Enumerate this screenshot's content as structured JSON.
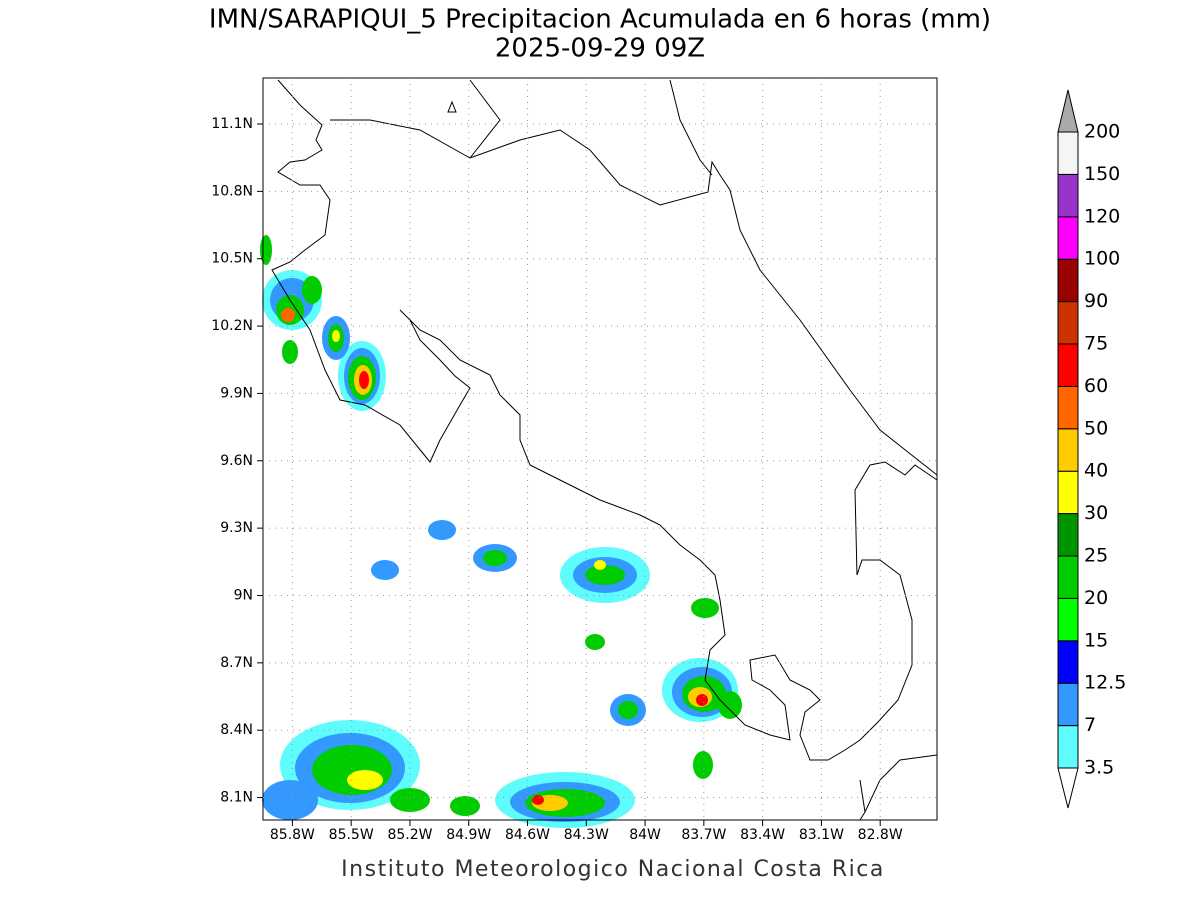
{
  "map": {
    "title": "IMN/SARAPIQUI_5 Precipitacion Acumulada en 6 horas (mm)",
    "subtitle": "2025-09-29 09Z",
    "footer": "Instituto Meteorologico Nacional Costa Rica",
    "xlim": [
      -85.95,
      -82.51
    ],
    "ylim": [
      8.0,
      11.305
    ],
    "grid": true,
    "xticks": [
      {
        "value": -85.8,
        "label": "85.8W"
      },
      {
        "value": -85.5,
        "label": "85.5W"
      },
      {
        "value": -85.2,
        "label": "85.2W"
      },
      {
        "value": -84.9,
        "label": "84.9W"
      },
      {
        "value": -84.6,
        "label": "84.6W"
      },
      {
        "value": -84.3,
        "label": "84.3W"
      },
      {
        "value": -84.0,
        "label": "84W"
      },
      {
        "value": -83.7,
        "label": "83.7W"
      },
      {
        "value": -83.4,
        "label": "83.4W"
      },
      {
        "value": -83.1,
        "label": "83.1W"
      },
      {
        "value": -82.8,
        "label": "82.8W"
      }
    ],
    "yticks": [
      {
        "value": 11.1,
        "label": "11.1N"
      },
      {
        "value": 10.8,
        "label": "10.8N"
      },
      {
        "value": 10.5,
        "label": "10.5N"
      },
      {
        "value": 10.2,
        "label": "10.2N"
      },
      {
        "value": 9.9,
        "label": "9.9N"
      },
      {
        "value": 9.6,
        "label": "9.6N"
      },
      {
        "value": 9.3,
        "label": "9.3N"
      },
      {
        "value": 9.0,
        "label": "9N"
      },
      {
        "value": 8.7,
        "label": "8.7N"
      },
      {
        "value": 8.4,
        "label": "8.4N"
      },
      {
        "value": 8.1,
        "label": "8.1N"
      }
    ]
  },
  "legend": {
    "levels": [
      3.5,
      7,
      12.5,
      15,
      20,
      25,
      30,
      40,
      50,
      60,
      75,
      90,
      100,
      120,
      150,
      200
    ],
    "colors": [
      "#5efcfc",
      "#3399ff",
      "#0000ff",
      "#00ff00",
      "#00cc00",
      "#009400",
      "#ffff00",
      "#ffcc00",
      "#ff6600",
      "#ff0000",
      "#cc3300",
      "#990000",
      "#ff00ff",
      "#9933cc",
      "#f5f5f5"
    ],
    "under_color": "#ffffff",
    "over_color": "#aaaaaa"
  }
}
